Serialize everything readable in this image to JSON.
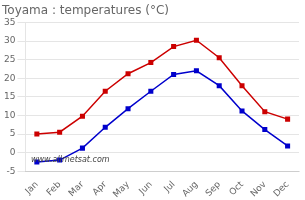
{
  "chart_data": {
    "type": "line",
    "title": "Toyama : temperatures (°C)",
    "categories": [
      "Jan",
      "Feb",
      "Mar",
      "Apr",
      "May",
      "Jun",
      "Jul",
      "Aug",
      "Sep",
      "Oct",
      "Nov",
      "Dec"
    ],
    "series": [
      {
        "color": "#cc0000",
        "values": [
          5.0,
          5.5,
          9.8,
          16.5,
          21.2,
          24.2,
          28.5,
          30.2,
          25.5,
          18.0,
          11.0,
          9.0
        ]
      },
      {
        "color": "#0000cc",
        "values": [
          -2.5,
          -2.0,
          1.2,
          6.8,
          11.8,
          16.5,
          21.0,
          22.0,
          18.0,
          11.2,
          6.2,
          1.8
        ]
      }
    ],
    "ylim": [
      -5,
      35
    ],
    "yticks": [
      -5,
      0,
      5,
      10,
      15,
      20,
      25,
      30,
      35
    ],
    "grid": "y",
    "marker": "square",
    "annotation": "www.allmetsat.com"
  }
}
